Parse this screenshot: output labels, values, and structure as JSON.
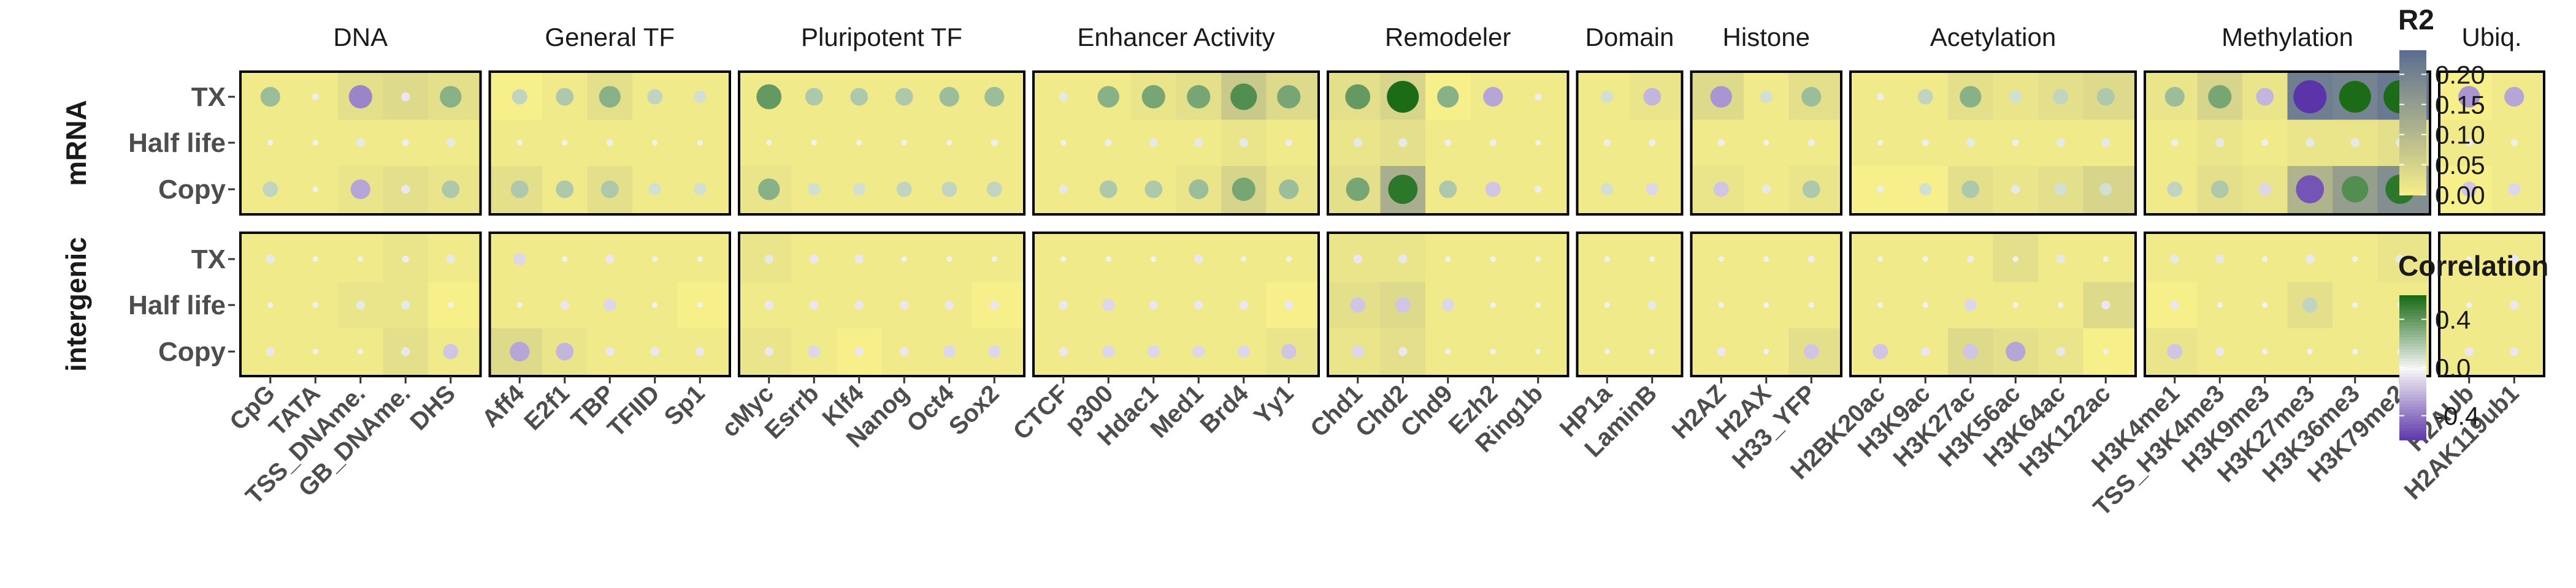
{
  "chart_data": {
    "type": "heatmap",
    "title": "",
    "groups": [
      {
        "name": "DNA",
        "columns": [
          "CpG",
          "TATA",
          "TSS_DNAme.",
          "GB_DNAme.",
          "DHS"
        ]
      },
      {
        "name": "General TF",
        "columns": [
          "Aff4",
          "E2f1",
          "TBP",
          "TFIID",
          "Sp1"
        ]
      },
      {
        "name": "Pluripotent TF",
        "columns": [
          "cMyc",
          "Esrrb",
          "Klf4",
          "Nanog",
          "Oct4",
          "Sox2"
        ]
      },
      {
        "name": "Enhancer Activity",
        "columns": [
          "CTCF",
          "p300",
          "Hdac1",
          "Med1",
          "Brd4",
          "Yy1"
        ]
      },
      {
        "name": "Remodeler",
        "columns": [
          "Chd1",
          "Chd2",
          "Chd9",
          "Ezh2",
          "Ring1b"
        ]
      },
      {
        "name": "Domain",
        "columns": [
          "HP1a",
          "LaminB"
        ]
      },
      {
        "name": "Histone",
        "columns": [
          "H2AZ",
          "H2AX",
          "H33_YFP"
        ]
      },
      {
        "name": "Acetylation",
        "columns": [
          "H2BK20ac",
          "H3K9ac",
          "H3K27ac",
          "H3K56ac",
          "H3K64ac",
          "H3K122ac"
        ]
      },
      {
        "name": "Methylation",
        "columns": [
          "H3K4me1",
          "TSS_H3K4me3",
          "H3K9me3",
          "H3K27me3",
          "H3K36me3",
          "H3K79me2"
        ]
      },
      {
        "name": "Ubiq.",
        "columns": [
          "H2AUb",
          "H2AK119ub1"
        ]
      }
    ],
    "panels": [
      {
        "strip": "mRNA",
        "rows": [
          "TX",
          "Half life",
          "Copy"
        ]
      },
      {
        "strip": "intergenic",
        "rows": [
          "TX",
          "Half life",
          "Copy"
        ]
      }
    ],
    "correlation": [
      [
        [
          0.25,
          0.03,
          -0.35,
          -0.05,
          0.3,
          0.15,
          0.2,
          0.3,
          0.15,
          0.1,
          0.4,
          0.2,
          0.2,
          0.2,
          0.25,
          0.25,
          0.05,
          0.3,
          0.35,
          0.35,
          0.45,
          0.35,
          0.4,
          0.65,
          0.3,
          -0.25,
          0.03,
          0.1,
          -0.2,
          -0.3,
          0.1,
          0.25,
          0.03,
          0.15,
          0.3,
          0.1,
          0.15,
          0.2,
          0.25,
          0.35,
          -0.2,
          -0.7,
          0.65,
          0.7,
          -0.3,
          -0.25
        ],
        [
          0.02,
          0.02,
          0.05,
          0.03,
          0.05,
          0.02,
          0.02,
          0.03,
          0.02,
          0.02,
          0.02,
          0.02,
          0.02,
          0.02,
          0.02,
          0.03,
          0.02,
          0.03,
          0.05,
          0.05,
          0.05,
          0.03,
          0.05,
          0.05,
          0.03,
          0.03,
          0.02,
          0.03,
          0.03,
          0.03,
          0.02,
          0.03,
          0.02,
          0.03,
          0.05,
          0.03,
          0.05,
          0.05,
          0.03,
          0.05,
          0.03,
          0.05,
          0.05,
          0.05,
          0.03,
          0.03
        ],
        [
          0.15,
          0.02,
          -0.25,
          -0.05,
          0.2,
          0.2,
          0.2,
          0.2,
          0.1,
          0.1,
          0.3,
          0.1,
          0.1,
          0.15,
          0.15,
          0.15,
          0.05,
          0.2,
          0.2,
          0.25,
          0.35,
          0.25,
          0.35,
          0.55,
          0.2,
          -0.15,
          0.03,
          0.1,
          -0.1,
          -0.15,
          0.05,
          0.2,
          0.03,
          0.1,
          0.2,
          0.05,
          0.1,
          0.1,
          0.15,
          0.2,
          -0.1,
          -0.5,
          0.45,
          0.55,
          -0.15,
          -0.1
        ]
      ],
      [
        [
          0.05,
          0.02,
          0.02,
          -0.03,
          0.05,
          -0.1,
          0.02,
          -0.05,
          0.02,
          0.02,
          0.05,
          -0.05,
          -0.05,
          0.02,
          0.02,
          0.02,
          0.02,
          0.02,
          0.02,
          -0.05,
          0.02,
          0.02,
          -0.05,
          0.05,
          0.02,
          0.02,
          0.02,
          0.02,
          -0.02,
          0.02,
          0.02,
          -0.03,
          0.02,
          0.02,
          -0.03,
          0.02,
          0.05,
          0.02,
          0.05,
          0.05,
          0.02,
          -0.05,
          0.02,
          0.05,
          0.02,
          -0.05
        ],
        [
          0.02,
          0.02,
          0.05,
          0.05,
          0.02,
          0.02,
          -0.05,
          -0.1,
          0.02,
          0.02,
          -0.05,
          -0.05,
          -0.05,
          -0.05,
          -0.05,
          -0.05,
          -0.05,
          -0.1,
          -0.05,
          -0.05,
          -0.05,
          -0.05,
          -0.15,
          -0.15,
          -0.1,
          0.02,
          0.02,
          0.02,
          0.05,
          0.02,
          0.02,
          0.02,
          0.02,
          0.02,
          -0.1,
          0.02,
          0.02,
          -0.05,
          -0.05,
          0.02,
          -0.02,
          0.15,
          0.02,
          0.02,
          0.02,
          -0.05
        ],
        [
          -0.05,
          0.02,
          0.02,
          0.05,
          -0.15,
          -0.25,
          -0.2,
          -0.05,
          -0.05,
          -0.05,
          -0.05,
          -0.1,
          -0.05,
          -0.05,
          -0.1,
          -0.1,
          -0.05,
          -0.1,
          -0.1,
          -0.1,
          -0.1,
          -0.15,
          -0.1,
          -0.05,
          0.02,
          0.02,
          0.02,
          0.02,
          0.02,
          -0.05,
          0.02,
          -0.15,
          -0.15,
          -0.05,
          -0.15,
          -0.25,
          -0.05,
          0.02,
          -0.15,
          -0.05,
          -0.02,
          -0.02,
          -0.02,
          -0.02,
          -0.05,
          -0.05
        ]
      ]
    ],
    "r2": [
      [
        [
          0.01,
          0.01,
          0.03,
          0.04,
          0.03,
          0.0,
          0.01,
          0.03,
          0.01,
          0.01,
          0.01,
          0.01,
          0.01,
          0.01,
          0.01,
          0.01,
          0.01,
          0.01,
          0.02,
          0.03,
          0.07,
          0.04,
          0.03,
          0.05,
          0.0,
          0.01,
          0.01,
          0.01,
          0.02,
          0.04,
          0.01,
          0.03,
          0.01,
          0.01,
          0.03,
          0.02,
          0.03,
          0.04,
          0.02,
          0.05,
          0.02,
          0.21,
          0.2,
          0.22,
          0.0,
          0.01
        ],
        [
          0.01,
          0.01,
          0.01,
          0.01,
          0.01,
          0.01,
          0.01,
          0.01,
          0.01,
          0.01,
          0.01,
          0.01,
          0.01,
          0.01,
          0.01,
          0.01,
          0.01,
          0.01,
          0.01,
          0.01,
          0.02,
          0.01,
          0.02,
          0.03,
          0.01,
          0.01,
          0.01,
          0.01,
          0.01,
          0.01,
          0.01,
          0.01,
          0.01,
          0.01,
          0.01,
          0.01,
          0.01,
          0.01,
          0.01,
          0.02,
          0.01,
          0.02,
          0.02,
          0.03,
          0.01,
          0.01
        ],
        [
          0.01,
          0.01,
          0.02,
          0.03,
          0.02,
          0.03,
          0.01,
          0.03,
          0.01,
          0.01,
          0.02,
          0.01,
          0.01,
          0.01,
          0.01,
          0.01,
          0.01,
          0.01,
          0.01,
          0.02,
          0.05,
          0.02,
          0.03,
          0.12,
          0.01,
          0.01,
          0.01,
          0.01,
          0.01,
          0.02,
          0.01,
          0.02,
          0.0,
          0.0,
          0.03,
          0.02,
          0.03,
          0.05,
          0.01,
          0.03,
          0.02,
          0.11,
          0.15,
          0.18,
          0.0,
          0.01
        ]
      ],
      [
        [
          0.01,
          0.01,
          0.01,
          0.02,
          0.01,
          0.01,
          0.01,
          0.01,
          0.01,
          0.01,
          0.02,
          0.01,
          0.01,
          0.01,
          0.01,
          0.01,
          0.01,
          0.01,
          0.01,
          0.01,
          0.01,
          0.01,
          0.02,
          0.02,
          0.01,
          0.01,
          0.01,
          0.01,
          0.01,
          0.01,
          0.01,
          0.01,
          0.01,
          0.01,
          0.01,
          0.03,
          0.01,
          0.01,
          0.01,
          0.01,
          0.01,
          0.01,
          0.01,
          0.02,
          0.01,
          0.01
        ],
        [
          0.01,
          0.01,
          0.02,
          0.02,
          0.0,
          0.01,
          0.01,
          0.01,
          0.01,
          0.0,
          0.01,
          0.01,
          0.01,
          0.01,
          0.01,
          0.0,
          0.01,
          0.01,
          0.01,
          0.01,
          0.01,
          0.0,
          0.03,
          0.04,
          0.01,
          0.01,
          0.01,
          0.01,
          0.01,
          0.01,
          0.01,
          0.01,
          0.01,
          0.01,
          0.01,
          0.01,
          0.01,
          0.04,
          0.0,
          0.01,
          0.01,
          0.03,
          0.01,
          0.01,
          0.01,
          0.01
        ],
        [
          0.01,
          0.01,
          0.01,
          0.03,
          0.01,
          0.04,
          0.02,
          0.01,
          0.01,
          0.01,
          0.02,
          0.01,
          0.0,
          0.01,
          0.01,
          0.01,
          0.01,
          0.01,
          0.01,
          0.01,
          0.01,
          0.02,
          0.02,
          0.03,
          0.01,
          0.01,
          0.01,
          0.01,
          0.01,
          0.01,
          0.01,
          0.03,
          0.01,
          0.01,
          0.04,
          0.03,
          0.02,
          0.0,
          0.02,
          0.01,
          0.01,
          0.01,
          0.01,
          0.01,
          0.01,
          0.01
        ]
      ]
    ],
    "legend_r2": {
      "title": "R2",
      "ticks": [
        "0.20",
        "0.15",
        "0.10",
        "0.05",
        "0.00"
      ],
      "range": [
        0,
        0.24
      ]
    },
    "legend_correlation": {
      "title": "Correlation",
      "ticks": [
        "0.4",
        "0.0",
        "-0.4"
      ],
      "range": [
        -0.6,
        0.6
      ]
    },
    "colors": {
      "r2_low": "#f7ef8a",
      "r2_high": "#5b6e91",
      "corr_neg": "#5a34a8",
      "corr_zero": "#f7f7f7",
      "corr_pos": "#1b6b17",
      "panel_border": "#000000"
    }
  }
}
